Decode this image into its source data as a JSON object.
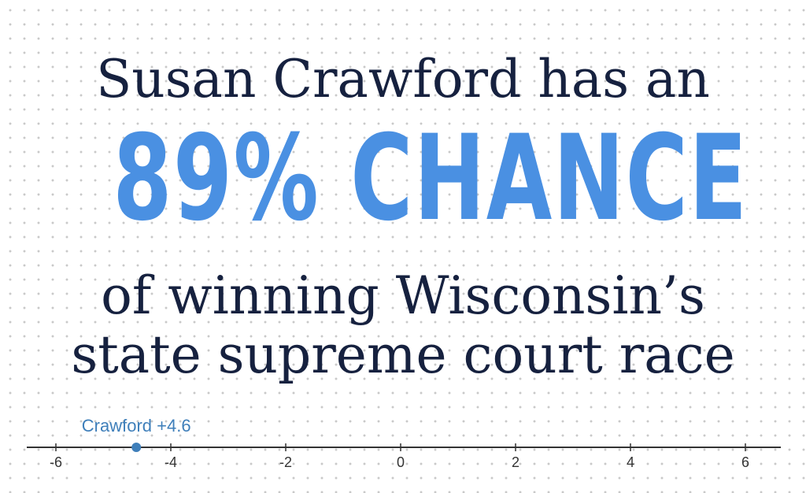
{
  "headline": {
    "line1": "Susan Crawford has an",
    "stat": "89% CHANCE",
    "line3": "of winning Wisconsin’s",
    "line4": "state supreme court race"
  },
  "colors": {
    "text_dark": "#16213f",
    "accent_blue": "#4a90e2",
    "point_blue": "#3f7fba",
    "axis": "#333333"
  },
  "chart_data": {
    "type": "scatter",
    "title": "",
    "xlabel": "",
    "ylabel": "",
    "xlim": [
      -6.6,
      6.6
    ],
    "ticks": [
      -6,
      -4,
      -2,
      0,
      2,
      4,
      6
    ],
    "tick_labels": [
      "-6",
      "-4",
      "-2",
      "0",
      "2",
      "4",
      "6"
    ],
    "points": [
      {
        "x": -4.6,
        "label": "Crawford +4.6"
      }
    ],
    "grid": false
  }
}
